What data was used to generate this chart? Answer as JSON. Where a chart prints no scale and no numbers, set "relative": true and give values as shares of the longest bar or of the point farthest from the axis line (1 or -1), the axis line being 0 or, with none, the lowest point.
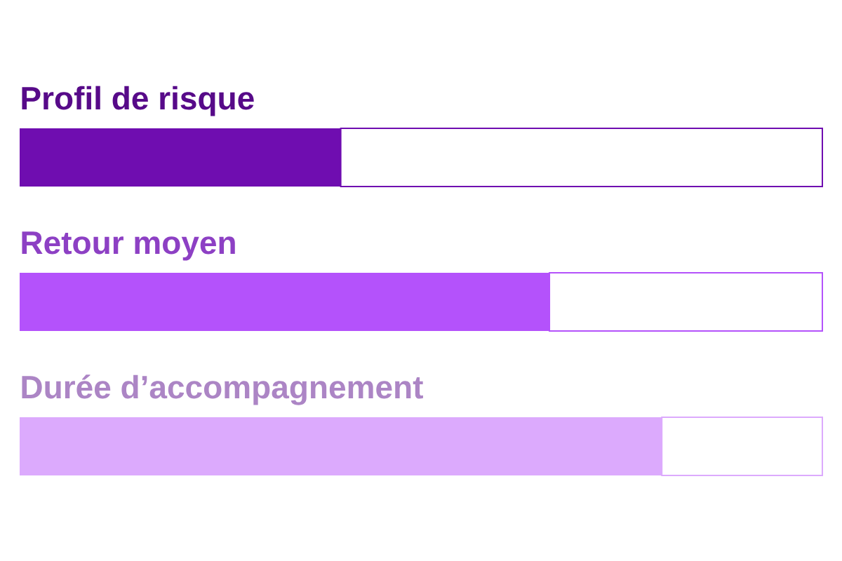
{
  "chart_data": {
    "type": "bar",
    "orientation": "horizontal",
    "relative": true,
    "stacked": true,
    "categories": [
      "Profil de risque",
      "Retour moyen",
      "Durée d’accompagnement"
    ],
    "series": [
      {
        "colors": [
          "#6f0db0",
          "#b452fb",
          "#dcaafd"
        ],
        "values": [
          0.4,
          0.66,
          0.8
        ]
      },
      {
        "color": "#ffffff",
        "values": [
          0.6,
          0.34,
          0.2
        ]
      }
    ]
  }
}
